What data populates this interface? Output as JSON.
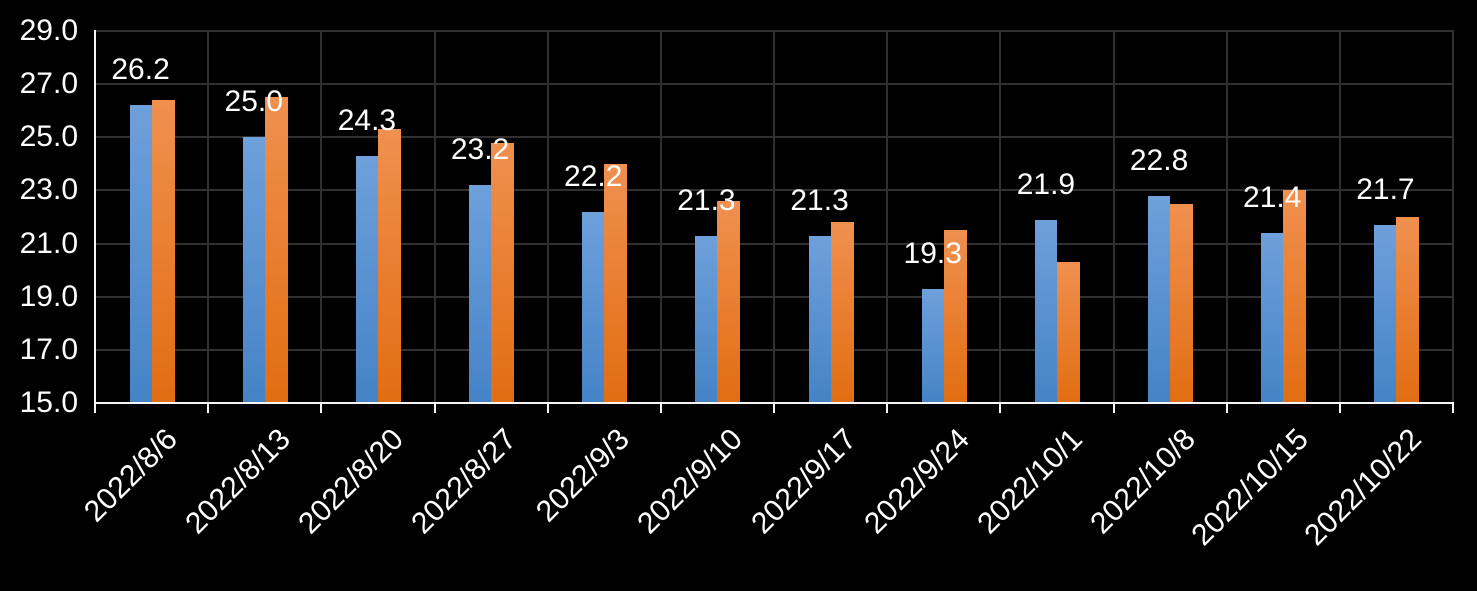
{
  "chart_data": {
    "type": "bar",
    "title": "",
    "legend": "none",
    "grid": true,
    "background_color": "#000000",
    "axis_color": "#F5F5F5",
    "gridline_color": "#303030",
    "label_color": "#FFFFFF",
    "ylim": [
      15.0,
      29.0
    ],
    "ytick_step": 2.0,
    "ytick_values": [
      29.0,
      27.0,
      25.0,
      23.0,
      21.0,
      19.0,
      17.0,
      15.0
    ],
    "ytick_labels": [
      "29.0",
      "27.0",
      "25.0",
      "23.0",
      "21.0",
      "19.0",
      "17.0",
      "15.0"
    ],
    "categories": [
      "2022/8/6",
      "2022/8/13",
      "2022/8/20",
      "2022/8/27",
      "2022/9/3",
      "2022/9/10",
      "2022/9/17",
      "2022/9/24",
      "2022/10/1",
      "2022/10/8",
      "2022/10/15",
      "2022/10/22"
    ],
    "series": [
      {
        "name": "blue-series",
        "color_top": "#6EA0DB",
        "color_bottom": "#4583C6",
        "values": [
          26.2,
          25.0,
          24.3,
          23.2,
          22.2,
          21.3,
          21.3,
          19.3,
          21.9,
          22.8,
          21.4,
          21.7
        ],
        "data_labels": [
          "26.2",
          "25.0",
          "24.3",
          "23.2",
          "22.2",
          "21.3",
          "21.3",
          "19.3",
          "21.9",
          "22.8",
          "21.4",
          "21.7"
        ]
      },
      {
        "name": "orange-series",
        "color_top": "#F0904F",
        "color_bottom": "#E26D12",
        "values": [
          26.4,
          26.5,
          25.3,
          24.8,
          24.0,
          22.6,
          21.8,
          21.5,
          20.3,
          22.5,
          23.0,
          22.0
        ],
        "data_labels": null
      }
    ]
  }
}
